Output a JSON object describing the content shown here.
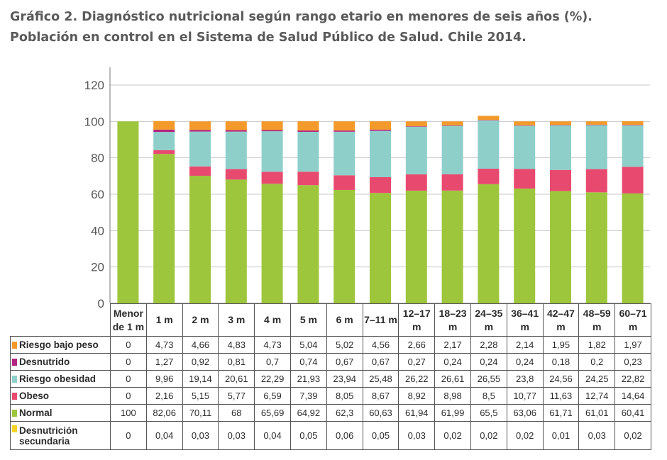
{
  "title": "Gráfico 2. Diagnóstico nutricional según rango etario  en menores de seis años (%). Población en control en el Sistema de Salud Público de Salud. Chile 2014.",
  "chart_data": {
    "type": "bar",
    "stacked": true,
    "ylim": [
      0,
      120
    ],
    "yticks": [
      0,
      20,
      40,
      60,
      80,
      100,
      120
    ],
    "grid": "horizontal",
    "legend": "table-below",
    "categories": [
      "Menor de 1 m",
      "1 m",
      "2 m",
      "3 m",
      "4 m",
      "5 m",
      "6 m",
      "7–11 m",
      "12–17 m",
      "18–23 m",
      "24–35 m",
      "36–41 m",
      "42–47 m",
      "48–59 m",
      "60–71 m"
    ],
    "series": [
      {
        "name": "Riesgo bajo peso",
        "color": "#f39a2b",
        "values": [
          "0",
          "4,73",
          "4,66",
          "4,83",
          "4,73",
          "5,04",
          "5,02",
          "4,56",
          "2,66",
          "2,17",
          "2,28",
          "2,14",
          "1,95",
          "1,82",
          "1,97"
        ]
      },
      {
        "name": "Desnutrido",
        "color": "#b0267e",
        "values": [
          "0",
          "1,27",
          "0,92",
          "0,81",
          "0,7",
          "0,74",
          "0,67",
          "0,67",
          "0,27",
          "0,24",
          "0,24",
          "0,24",
          "0,18",
          "0,2",
          "0,23"
        ]
      },
      {
        "name": "Riesgo obesidad",
        "color": "#8fcfca",
        "values": [
          "0",
          "9,96",
          "19,14",
          "20,61",
          "22,29",
          "21,93",
          "23,94",
          "25,48",
          "26,22",
          "26,61",
          "26,55",
          "23,8",
          "24,56",
          "24,25",
          "22,82"
        ]
      },
      {
        "name": "Obeso",
        "color": "#e84a6f",
        "values": [
          "0",
          "2,16",
          "5,15",
          "5,77",
          "6,59",
          "7,39",
          "8,05",
          "8,67",
          "8,92",
          "8,98",
          "8,5",
          "10,77",
          "11,63",
          "12,74",
          "14,64"
        ]
      },
      {
        "name": "Normal",
        "color": "#9dc63c",
        "values": [
          "100",
          "82,06",
          "70,11",
          "68",
          "65,69",
          "64,92",
          "62,3",
          "60,63",
          "61,94",
          "61,99",
          "65,5",
          "63,06",
          "61,71",
          "61,01",
          "60,41"
        ]
      },
      {
        "name": "Desnutrición secundaria",
        "color": "#f5d328",
        "values": [
          "0",
          "0,04",
          "0,03",
          "0,03",
          "0,04",
          "0,05",
          "0,06",
          "0,05",
          "0,03",
          "0,02",
          "0,02",
          "0,02",
          "0,01",
          "0,03",
          "0,02"
        ]
      }
    ]
  }
}
